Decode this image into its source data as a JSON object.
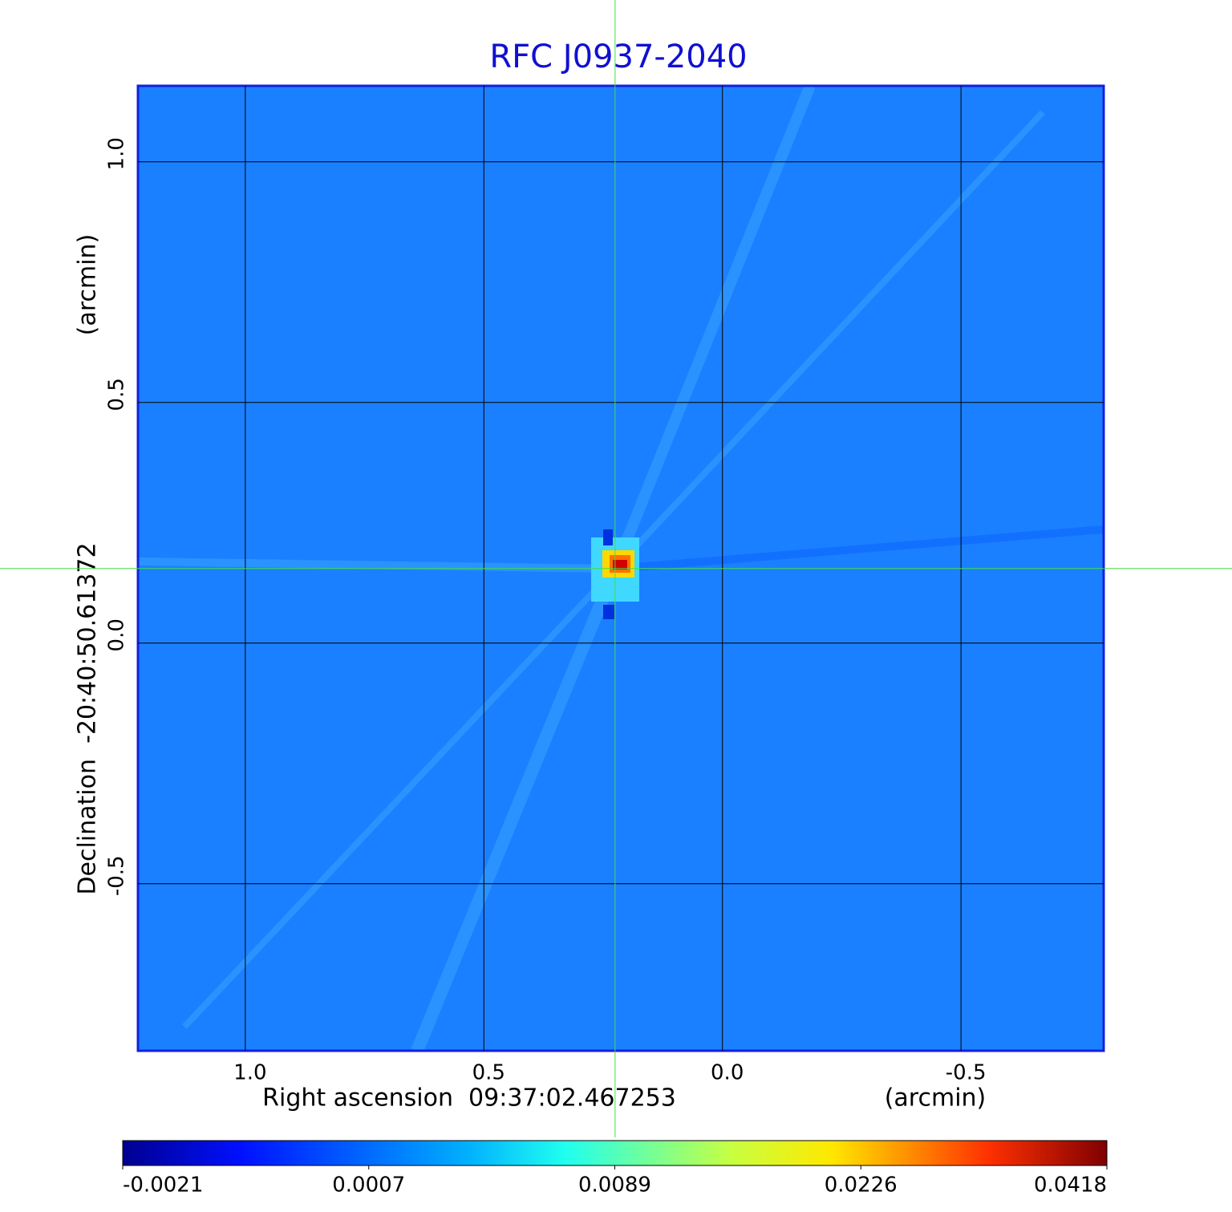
{
  "chart_data": {
    "type": "image",
    "title": "RFC J0937-2040",
    "x_label": "Right ascension  09:37:02.467253",
    "x_unit": "(arcmin)",
    "y_label": "Declination  -20:40:50.61372",
    "y_unit": "(arcmin)",
    "xlim": [
      1.225,
      -0.799
    ],
    "ylim": [
      -0.847,
      1.158
    ],
    "xticks": [
      {
        "value": 1,
        "label": "1.0"
      },
      0.5,
      {
        "value": 0,
        "label": "0.0"
      },
      -0.5
    ],
    "yticks": [
      {
        "value": 1,
        "label": "1.0"
      },
      0.5,
      {
        "value": 0,
        "label": "0.0"
      },
      -0.5
    ],
    "grid": true,
    "crosshair": {
      "x": 0.225,
      "y": 0.155
    },
    "colorbar_ticks": [
      -0.0021,
      0.0007,
      0.0089,
      0.0226,
      0.0418
    ],
    "title_color": "#1010d0"
  }
}
